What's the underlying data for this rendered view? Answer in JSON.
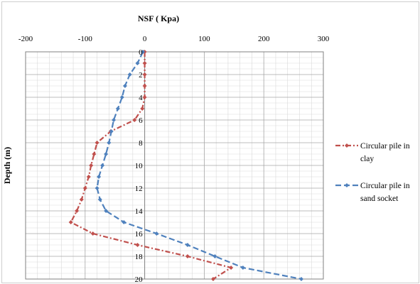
{
  "chart_data": {
    "type": "line",
    "title": "NSF ( Kpa)",
    "xlabel": "NSF ( Kpa)",
    "ylabel": "Depth (m)",
    "xlim": [
      -200,
      300
    ],
    "ylim": [
      0,
      20
    ],
    "x_axis_position": "top",
    "y_axis_inverted": true,
    "grid": true,
    "legend_position": "right",
    "x_ticks": [
      "-200",
      "-100",
      "0",
      "100",
      "200",
      "300"
    ],
    "y_ticks": [
      "0",
      "2",
      "4",
      "6",
      "8",
      "10",
      "12",
      "14",
      "16",
      "18",
      "20"
    ],
    "depth": [
      0,
      1,
      2,
      3,
      4,
      5,
      6,
      7,
      8,
      9,
      10,
      11,
      12,
      13,
      14,
      15,
      16,
      17,
      18,
      19,
      20
    ],
    "series": [
      {
        "name": "Circular pile in clay",
        "legend_lines": [
          "Circular pile in",
          "clay"
        ],
        "color": "#c0504d",
        "dash": "dash-dot",
        "nsf": [
          0,
          0,
          0,
          0,
          0,
          -4,
          -17,
          -57,
          -80,
          -85,
          -90,
          -94,
          -100,
          -106,
          -114,
          -124,
          -87,
          -12,
          72,
          145,
          115
        ]
      },
      {
        "name": "Circular pile in sand socket",
        "legend_lines": [
          "Circular pile in",
          "sand socket"
        ],
        "color": "#4f81bd",
        "dash": "dash",
        "nsf": [
          -3,
          -12,
          -25,
          -33,
          -38,
          -45,
          -52,
          -56,
          -60,
          -65,
          -71,
          -77,
          -80,
          -75,
          -65,
          -35,
          20,
          72,
          118,
          165,
          263
        ]
      }
    ]
  }
}
